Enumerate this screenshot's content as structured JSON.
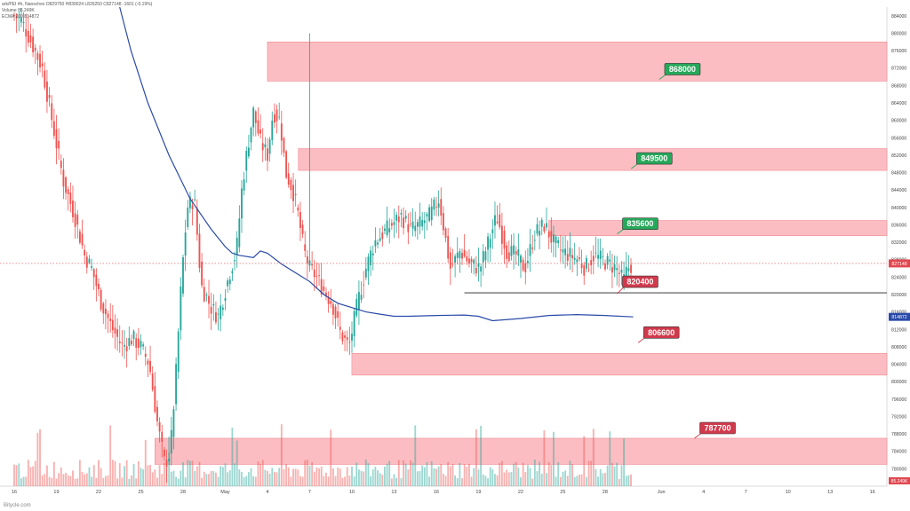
{
  "header": {
    "line1": "ark/PEI 4h, Nanschex  O829750  H830024  L826250  C827148  -1601 (-0.19%)",
    "line2": "Volume  85.249K",
    "line3": "ECMA 200  814872"
  },
  "watermark": "Bitycle.com",
  "chart_data": {
    "type": "candlestick",
    "y_axis": {
      "ticks": [
        884000,
        880000,
        876000,
        872000,
        868000,
        864000,
        860000,
        856000,
        852000,
        848000,
        844000,
        840000,
        836000,
        832000,
        828000,
        824000,
        820000,
        816000,
        812000,
        808000,
        804000,
        800000,
        796000,
        792000,
        788000,
        784000,
        780000
      ],
      "ylim": [
        776000,
        886000
      ]
    },
    "x_axis": {
      "ticks": [
        {
          "label": "16",
          "day": 0
        },
        {
          "label": "19",
          "day": 3
        },
        {
          "label": "22",
          "day": 6
        },
        {
          "label": "25",
          "day": 9
        },
        {
          "label": "28",
          "day": 12
        },
        {
          "label": "May",
          "day": 15
        },
        {
          "label": "4",
          "day": 18
        },
        {
          "label": "7",
          "day": 21
        },
        {
          "label": "10",
          "day": 24
        },
        {
          "label": "13",
          "day": 27
        },
        {
          "label": "16",
          "day": 30
        },
        {
          "label": "19",
          "day": 33
        },
        {
          "label": "22",
          "day": 36
        },
        {
          "label": "25",
          "day": 39
        },
        {
          "label": "28",
          "day": 42
        },
        {
          "label": "Jun",
          "day": 46
        },
        {
          "label": "4",
          "day": 49
        },
        {
          "label": "7",
          "day": 52
        },
        {
          "label": "10",
          "day": 55
        },
        {
          "label": "13",
          "day": 58
        },
        {
          "label": "16",
          "day": 61
        }
      ]
    },
    "price_path_days": [
      0,
      0.5,
      1.2,
      2,
      2.8,
      3.5,
      4.3,
      5,
      5.5,
      6.2,
      7,
      7.7,
      8.4,
      9,
      9.6,
      10.2,
      10.7,
      11.1,
      11.5,
      11.9,
      12.3,
      12.8,
      13.3,
      14,
      14.5,
      15,
      15.4,
      15.8,
      16.2,
      16.6,
      17,
      17.5,
      18,
      18.4,
      18.9,
      19.3,
      19.8,
      20.2,
      20.6,
      21,
      21.5,
      22,
      22.6,
      23.2,
      23.8,
      24.4,
      25,
      25.6,
      26.2,
      26.8,
      27.5,
      28.2,
      28.8,
      29.5,
      30.2,
      31,
      31.7,
      32.4,
      33.1,
      33.7,
      34.3,
      35,
      35.7,
      36.3,
      37,
      37.7,
      38.3,
      38.9,
      39.5,
      40.1,
      40.6,
      41.2,
      41.8,
      42.3,
      42.8,
      43.3,
      43.6,
      44
    ],
    "price_path_values": [
      884000,
      883000,
      878000,
      872000,
      858000,
      846000,
      838000,
      829000,
      826000,
      818000,
      812000,
      808000,
      810000,
      808000,
      804000,
      790000,
      781000,
      784000,
      802000,
      824000,
      840000,
      842000,
      822000,
      817000,
      815000,
      821000,
      826000,
      830000,
      845000,
      854000,
      862000,
      855000,
      852000,
      862000,
      860000,
      848000,
      844000,
      838000,
      830000,
      826000,
      824000,
      821000,
      818000,
      811000,
      808000,
      818000,
      826000,
      832000,
      834000,
      836000,
      838000,
      835000,
      836000,
      838000,
      842000,
      826000,
      830000,
      827000,
      826000,
      832000,
      838000,
      830000,
      829000,
      826000,
      834000,
      836000,
      832000,
      830000,
      829000,
      828000,
      826000,
      829000,
      828000,
      827000,
      826000,
      823000,
      826000,
      827148
    ],
    "ema": {
      "name": "EMA",
      "days": [
        7.5,
        8.3,
        9.5,
        11,
        12.5,
        14,
        15,
        15.5,
        16,
        17,
        17.5,
        18,
        19,
        20,
        21,
        22,
        23,
        24,
        25,
        26,
        27,
        28,
        30,
        32,
        33,
        34,
        36,
        38,
        40,
        42,
        44
      ],
      "values": [
        886000,
        876000,
        864000,
        852000,
        842000,
        835000,
        831000,
        829500,
        829000,
        828500,
        830000,
        829500,
        827000,
        825000,
        823000,
        820000,
        818000,
        817000,
        816000,
        815500,
        815000,
        815000,
        815200,
        815300,
        815000,
        814000,
        814500,
        815200,
        815400,
        815200,
        814872
      ]
    },
    "zones": [
      {
        "low": 869000,
        "high": 878000,
        "start_day": 18,
        "label": "868000",
        "label_color": "#26a85a",
        "label_at_day": 47.5
      },
      {
        "low": 848500,
        "high": 853500,
        "start_day": 20.2,
        "label": "849500",
        "label_color": "#26a85a",
        "label_at_day": 45.5
      },
      {
        "low": 833500,
        "high": 837000,
        "start_day": 38,
        "label": "835600",
        "label_color": "#26a85a",
        "label_at_day": 44.5
      },
      {
        "low": 801500,
        "high": 806500,
        "start_day": 24,
        "label": "806600",
        "label_color": "#d13a4c",
        "label_at_day": 46
      },
      {
        "low": 781000,
        "high": 787000,
        "start_day": 10,
        "label": "787700",
        "label_color": "#d13a4c",
        "label_at_day": 50
      }
    ],
    "support_line": {
      "value": 820400,
      "start_day": 32,
      "label": "820400",
      "label_color": "#d13a4c",
      "label_at_day": 44.5
    },
    "price_lines": [
      {
        "value": 827148,
        "label": "827148",
        "color": "#e04850"
      },
      {
        "value": 814872,
        "label": "814872",
        "color": "#2a4aa8"
      }
    ],
    "volume_axis_label": "85.249K",
    "colors": {
      "up": "#26a69a",
      "down": "#ef5350",
      "ema": "#2a4aa8",
      "zone": "#f9a7ae"
    }
  }
}
